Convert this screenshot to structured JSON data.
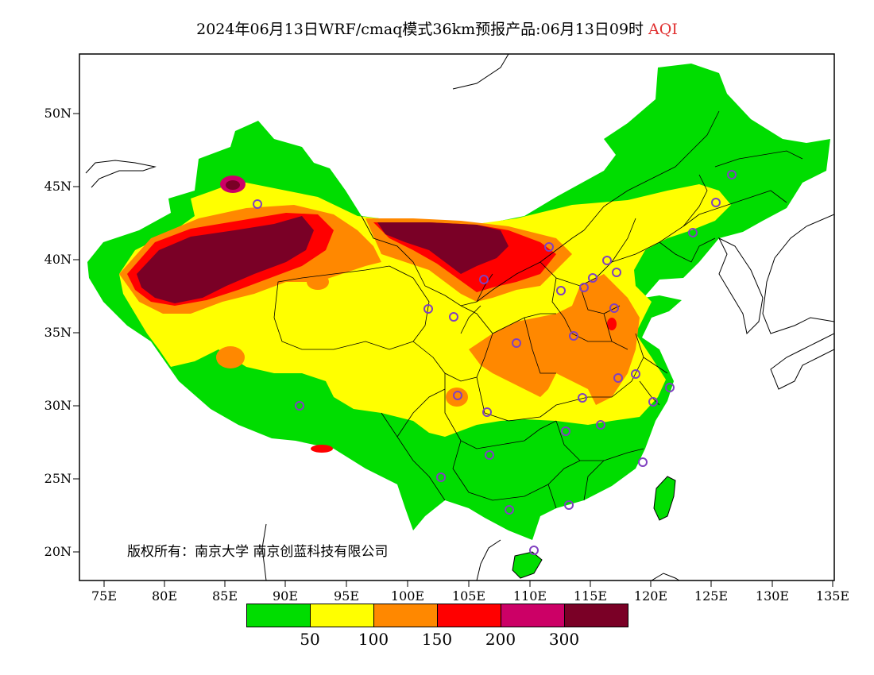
{
  "title": {
    "main": "2024年06月13日WRF/cmaq模式36km预报产品:06月13日09时",
    "variable": "AQI"
  },
  "lat_ticks": [
    "50N",
    "45N",
    "40N",
    "35N",
    "30N",
    "25N",
    "20N"
  ],
  "lon_ticks": [
    "75E",
    "80E",
    "85E",
    "90E",
    "95E",
    "100E",
    "105E",
    "110E",
    "115E",
    "120E",
    "125E",
    "130E",
    "135E"
  ],
  "copyright": "版权所有：南京大学  南京创蓝科技有限公司",
  "colorbar": {
    "colors": [
      "#00dd00",
      "#ffff00",
      "#ff8800",
      "#ff0000",
      "#cc0066",
      "#7a0026"
    ],
    "labels": [
      "50",
      "100",
      "150",
      "200",
      "300"
    ]
  },
  "station_marker_color": "#8040c0"
}
